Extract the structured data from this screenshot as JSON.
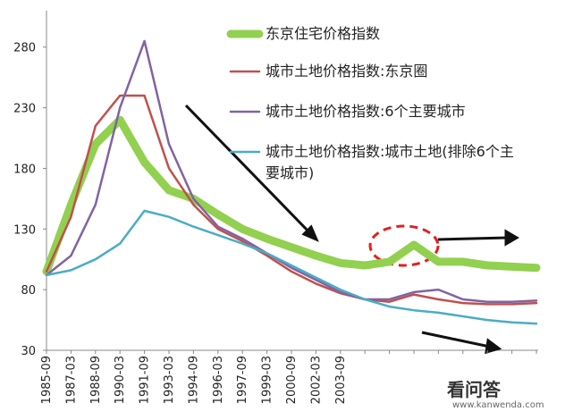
{
  "chart_data": {
    "type": "line",
    "categories": [
      "1985-09",
      "1987-03",
      "1988-09",
      "1990-03",
      "1991-09",
      "1993-03",
      "1994-09",
      "1996-03",
      "1997-09",
      "1999-03",
      "2000-09",
      "2002-03",
      "2003-09",
      null,
      null,
      null,
      null,
      null,
      null,
      null,
      null
    ],
    "series": [
      {
        "name": "东京住宅价格指数",
        "color": "#92d050",
        "values": [
          95,
          150,
          200,
          220,
          185,
          162,
          155,
          142,
          130,
          122,
          115,
          108,
          102,
          100,
          103,
          117,
          103,
          103,
          100,
          99,
          98
        ]
      },
      {
        "name": "城市土地价格指数:东京圈",
        "color": "#c0504d",
        "values": [
          95,
          140,
          215,
          240,
          240,
          180,
          150,
          130,
          120,
          108,
          95,
          85,
          77,
          72,
          70,
          76,
          72,
          69,
          68,
          68,
          69
        ]
      },
      {
        "name": "城市土地价格指数:6个主要城市",
        "color": "#8064a2",
        "values": [
          92,
          108,
          150,
          230,
          285,
          200,
          155,
          132,
          122,
          110,
          98,
          88,
          78,
          72,
          72,
          78,
          80,
          72,
          70,
          70,
          71
        ]
      },
      {
        "name": "城市土地价格指数:城市土地(排除6个主要城市)",
        "color": "#4bacc6",
        "values": [
          92,
          96,
          105,
          118,
          145,
          140,
          132,
          125,
          118,
          110,
          100,
          90,
          80,
          72,
          66,
          63,
          61,
          58,
          55,
          53,
          52
        ]
      }
    ],
    "ylim": [
      30,
      310
    ],
    "yticks": [
      30,
      80,
      130,
      180,
      230,
      280
    ]
  },
  "watermark": {
    "title": "看问答",
    "url": "www.kanwenda.com"
  }
}
